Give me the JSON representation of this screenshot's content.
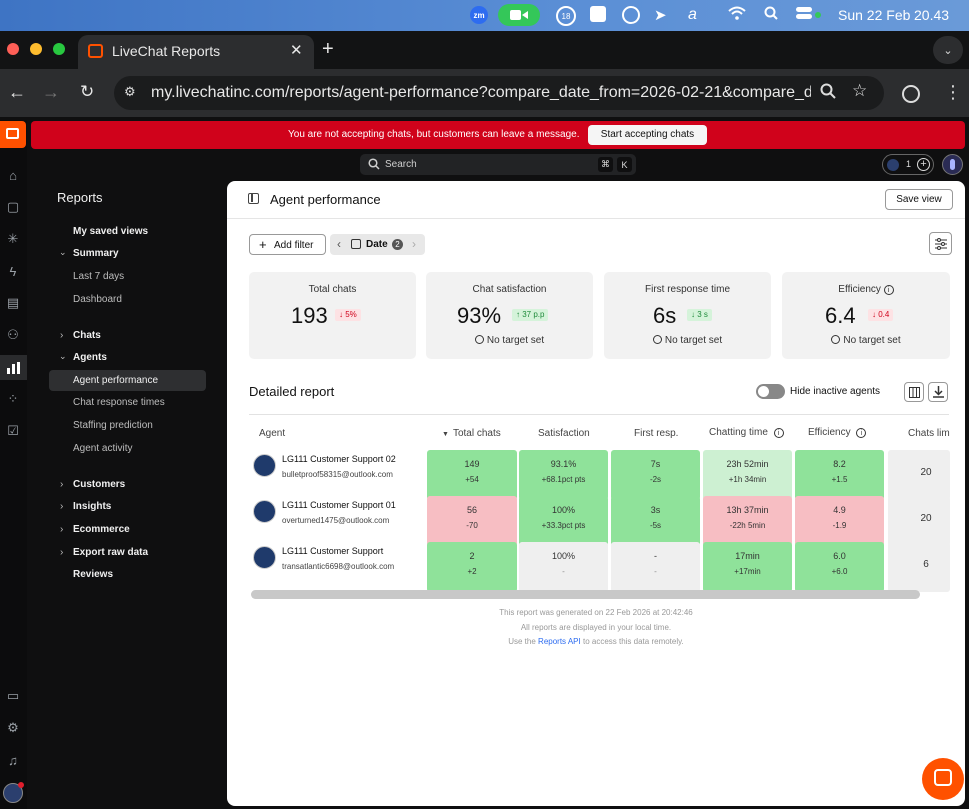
{
  "menubar": {
    "date": "Sun 22 Feb",
    "time": "20.43",
    "zoom_label": "zm",
    "badge_count": "18"
  },
  "browser": {
    "tab_title": "LiveChat Reports",
    "url": "my.livechatinc.com/reports/agent-performance?compare_date_from=2026-02-21&compare_date..."
  },
  "banner": {
    "message": "You are not accepting chats, but customers can leave a message.",
    "button": "Start accepting chats"
  },
  "search": {
    "placeholder": "Search",
    "key1": "⌘",
    "key2": "K"
  },
  "top_right": {
    "count": "1"
  },
  "sidebar": {
    "title": "Reports",
    "my_saved_views": "My saved views",
    "summary": "Summary",
    "last_7_days": "Last 7 days",
    "dashboard": "Dashboard",
    "chats": "Chats",
    "agents": "Agents",
    "agent_performance": "Agent performance",
    "chat_response_times": "Chat response times",
    "staffing_prediction": "Staffing prediction",
    "agent_activity": "Agent activity",
    "customers": "Customers",
    "insights": "Insights",
    "ecommerce": "Ecommerce",
    "export_raw_data": "Export raw data",
    "reviews": "Reviews"
  },
  "page": {
    "title": "Agent performance",
    "save_view": "Save view",
    "add_filter": "Add filter",
    "date_filter": "Date",
    "date_filter_count": "2"
  },
  "cards": [
    {
      "label": "Total chats",
      "value": "193",
      "change": "5%",
      "direction": "down",
      "change_color": "#d0021b"
    },
    {
      "label": "Chat satisfaction",
      "value": "93%",
      "change": "37 p.p",
      "direction": "up",
      "change_color": "#1e8a3a",
      "target": "No target set"
    },
    {
      "label": "First response time",
      "value": "6s",
      "change": "3 s",
      "direction": "down",
      "change_color": "#1e8a3a",
      "target": "No target set"
    },
    {
      "label": "Efficiency",
      "value": "6.4",
      "change": "0.4",
      "direction": "down",
      "change_color": "#d0021b",
      "target": "No target set"
    }
  ],
  "report": {
    "title": "Detailed report",
    "toggle_label": "Hide inactive agents"
  },
  "table": {
    "headers": [
      "Agent",
      "Total chats",
      "Satisfaction",
      "First resp.",
      "Chatting time",
      "Efficiency",
      "Chats lim"
    ],
    "rows": [
      {
        "name": "LG111 Customer Support 02",
        "email": "bulletproof58315@outlook.com",
        "total": "149",
        "total_d": "+54",
        "sat": "93.1%",
        "sat_d": "+68.1pct pts",
        "first": "7s",
        "first_d": "-2s",
        "chat": "23h 52min",
        "chat_d": "+1h 34min",
        "eff": "8.2",
        "eff_d": "+1.5",
        "lim": "20"
      },
      {
        "name": "LG111 Customer Support 01",
        "email": "overturned1475@outlook.com",
        "total": "56",
        "total_d": "-70",
        "sat": "100%",
        "sat_d": "+33.3pct pts",
        "first": "3s",
        "first_d": "-5s",
        "chat": "13h 37min",
        "chat_d": "-22h 5min",
        "eff": "4.9",
        "eff_d": "-1.9",
        "lim": "20"
      },
      {
        "name": "LG111 Customer Support",
        "email": "transatlantic6698@outlook.com",
        "total": "2",
        "total_d": "+2",
        "sat": "100%",
        "sat_d": "-",
        "first": "-",
        "first_d": "-",
        "chat": "17min",
        "chat_d": "+17min",
        "eff": "6.0",
        "eff_d": "+6.0",
        "lim": "6"
      }
    ]
  },
  "footer": {
    "line1": "This report was generated on 22 Feb 2026 at 20:42:46",
    "line2": "All reports are displayed in your local time.",
    "line3_prefix": "Use the",
    "line3_link": "Reports API",
    "line3_suffix": "to access this data remotely."
  }
}
